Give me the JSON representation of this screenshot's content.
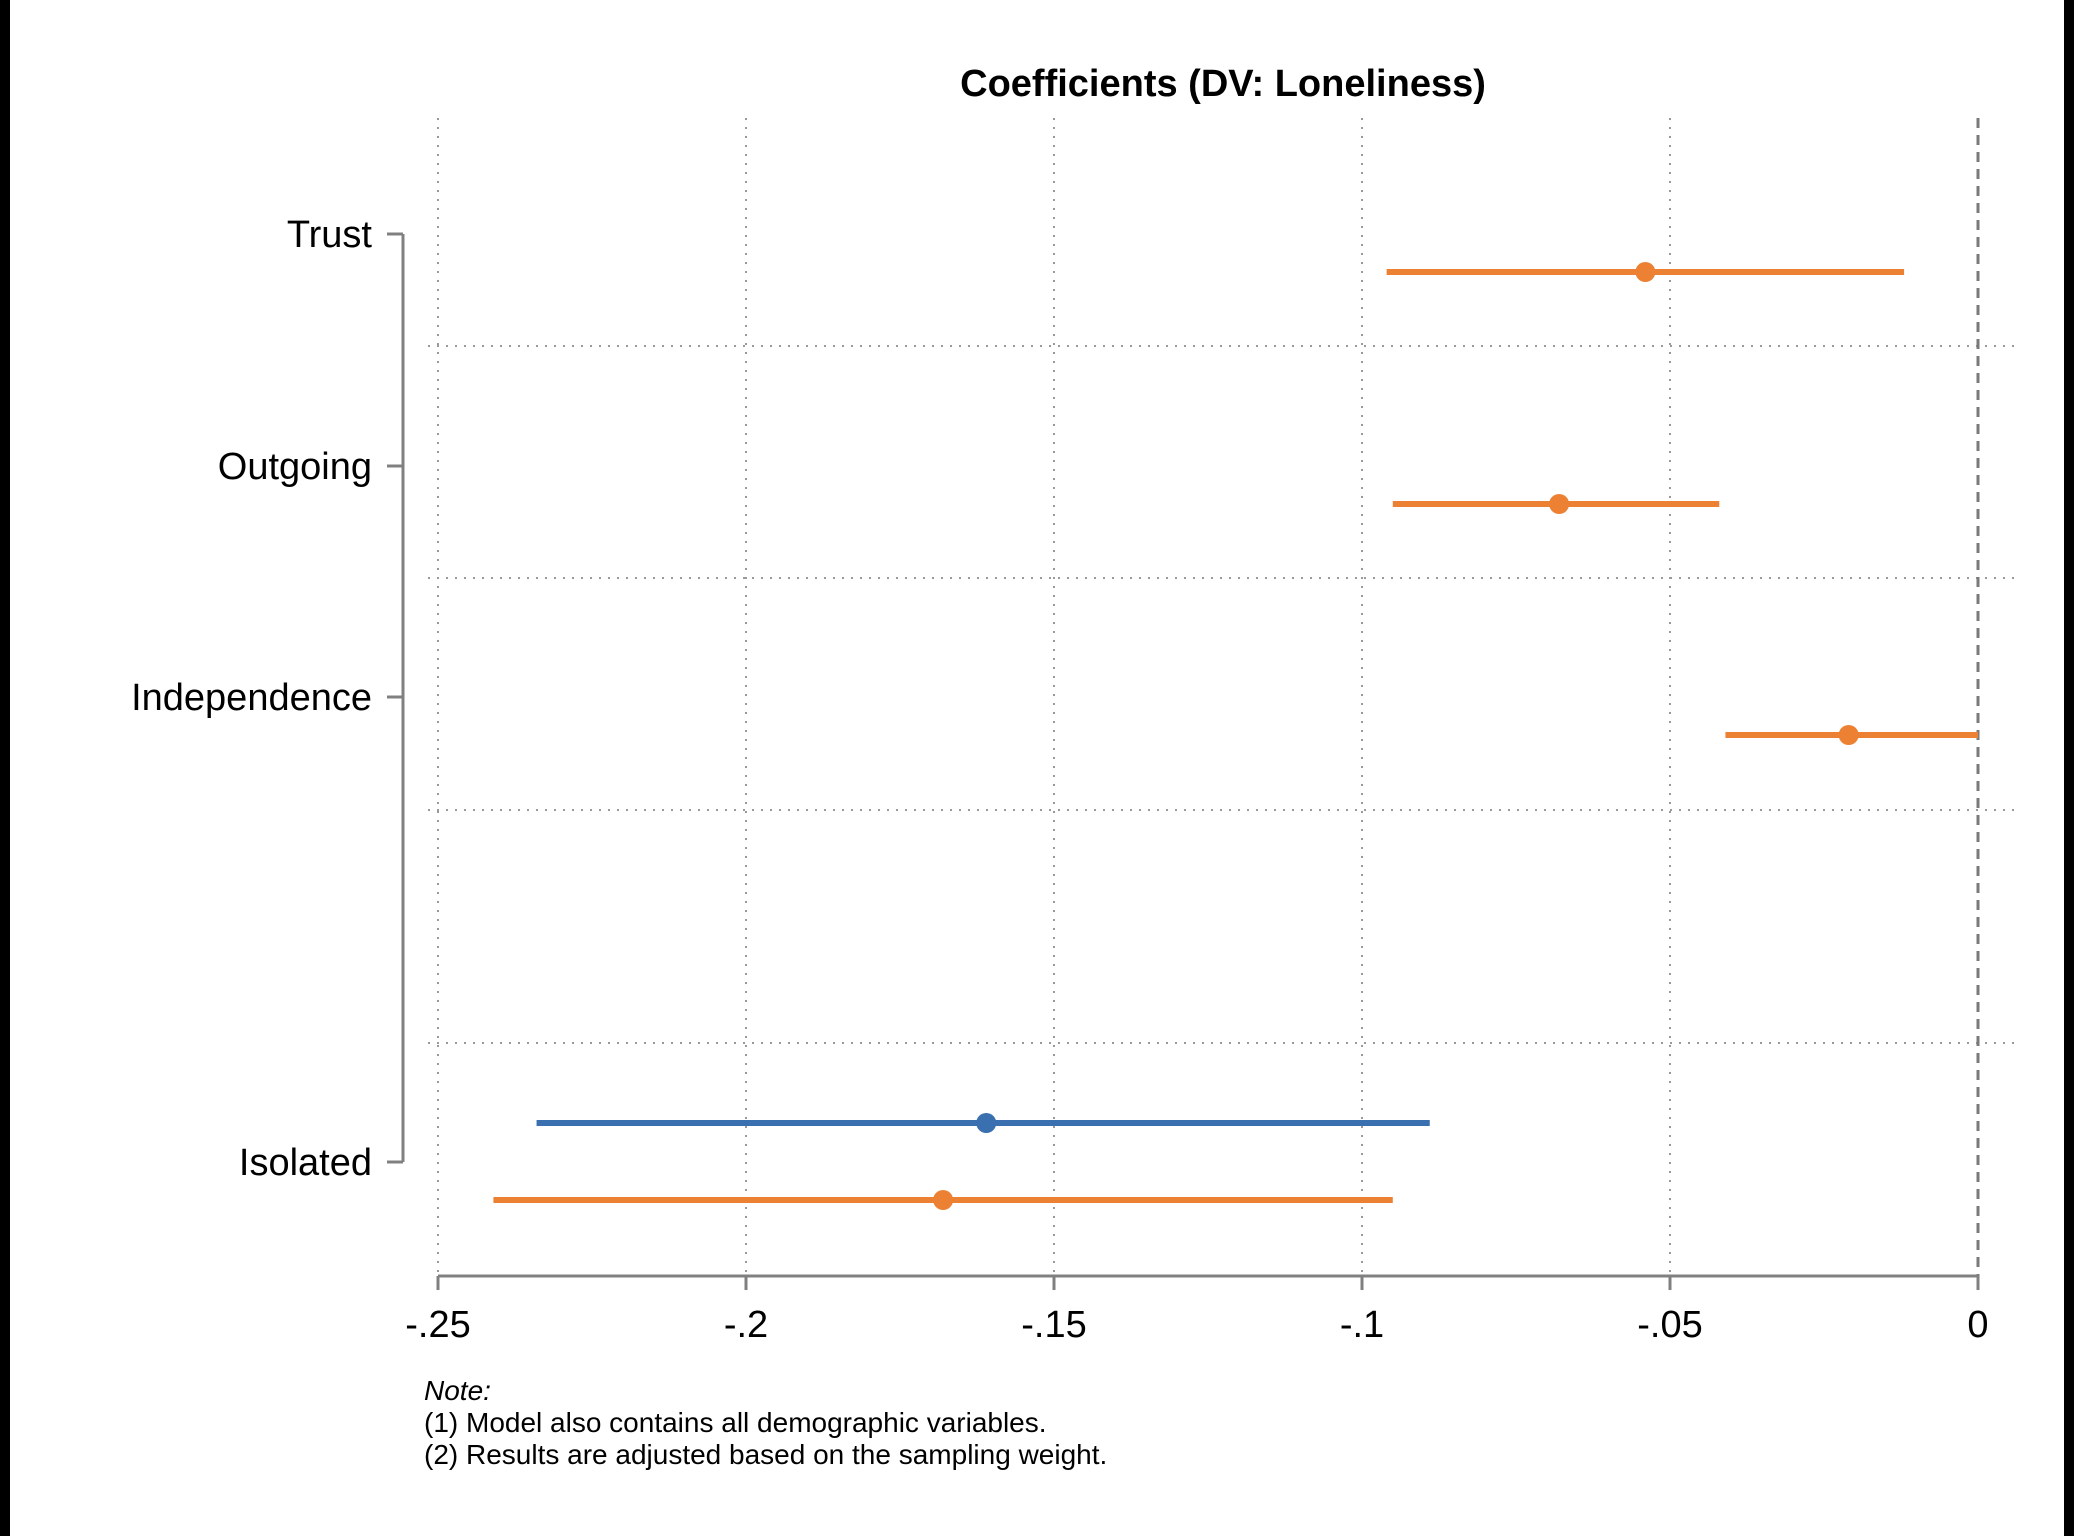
{
  "chart_data": {
    "type": "coefficient-plot",
    "title": "Coefficients (DV: Loneliness)",
    "xlim": [
      -0.25,
      0
    ],
    "x_ticks": [
      {
        "value": -0.25,
        "label": "-.25"
      },
      {
        "value": -0.2,
        "label": "-.2"
      },
      {
        "value": -0.15,
        "label": "-.15"
      },
      {
        "value": -0.1,
        "label": "-.1"
      },
      {
        "value": -0.05,
        "label": "-.05"
      },
      {
        "value": 0,
        "label": "0"
      }
    ],
    "reference_line": 0,
    "grid": true,
    "categories": [
      "Trust",
      "Outgoing",
      "Independence",
      "Isolated"
    ],
    "series": [
      {
        "color": "#3a6fb0",
        "points": [
          {
            "category": "Isolated",
            "estimate": -0.161,
            "ci": [
              -0.234,
              -0.089
            ]
          }
        ]
      },
      {
        "color": "#ec8133",
        "points": [
          {
            "category": "Trust",
            "estimate": -0.054,
            "ci": [
              -0.096,
              -0.012
            ]
          },
          {
            "category": "Outgoing",
            "estimate": -0.068,
            "ci": [
              -0.095,
              -0.042
            ]
          },
          {
            "category": "Independence",
            "estimate": -0.021,
            "ci": [
              -0.041,
              0.0
            ]
          },
          {
            "category": "Isolated",
            "estimate": -0.168,
            "ci": [
              -0.241,
              -0.095
            ]
          }
        ]
      }
    ]
  },
  "note": {
    "title": "Note:",
    "lines": [
      "(1) Model also contains all demographic variables.",
      "(2) Results are adjusted based on the sampling weight."
    ]
  }
}
